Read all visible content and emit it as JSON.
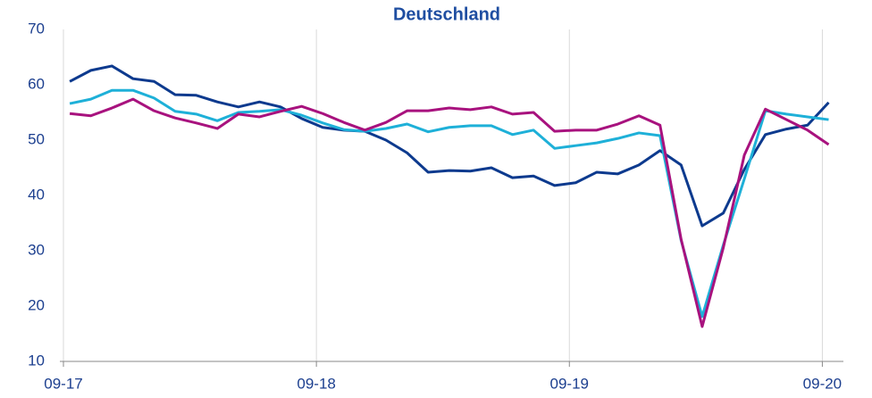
{
  "chart_data": {
    "type": "line",
    "title": "Deutschland",
    "x": [
      0.3,
      1.3,
      2.3,
      3.3,
      4.3,
      5.3,
      6.3,
      7.3,
      8.3,
      9.3,
      10.3,
      11.3,
      12.3,
      13.3,
      14.3,
      15.3,
      16.3,
      17.3,
      18.3,
      19.3,
      20.3,
      21.3,
      22.3,
      23.3,
      24.3,
      25.3,
      26.3,
      27.3,
      28.3,
      29.3,
      30.3,
      31.3,
      32.3,
      33.3,
      34.3,
      35.3,
      36.3
    ],
    "series": [
      {
        "color": "#0d3a8e",
        "values": [
          60.6,
          62.6,
          63.4,
          61.1,
          60.6,
          58.2,
          58.1,
          56.9,
          56.0,
          56.9,
          56.0,
          53.9,
          52.3,
          51.8,
          51.6,
          50.0,
          47.7,
          44.2,
          44.5,
          44.4,
          45.0,
          43.2,
          43.5,
          41.8,
          42.3,
          44.2,
          43.9,
          45.5,
          48.1,
          45.5,
          34.5,
          36.8,
          44.7,
          51.0,
          52.0,
          52.7,
          56.8
        ]
      },
      {
        "color": "#1eb0d8",
        "values": [
          56.6,
          57.4,
          59.0,
          59.0,
          57.6,
          55.2,
          54.7,
          53.5,
          55.0,
          55.2,
          55.5,
          54.5,
          53.1,
          51.9,
          51.6,
          52.1,
          52.9,
          51.5,
          52.3,
          52.6,
          52.6,
          51.0,
          51.8,
          48.5,
          49.0,
          49.5,
          50.3,
          51.3,
          50.8,
          31.9,
          18.1,
          31.0,
          43.0,
          55.3,
          54.7,
          54.2,
          53.7
        ]
      },
      {
        "color": "#a8127e",
        "values": [
          54.8,
          54.4,
          55.8,
          57.4,
          55.3,
          54.0,
          53.1,
          52.1,
          54.7,
          54.2,
          55.2,
          56.1,
          54.8,
          53.2,
          51.8,
          53.2,
          55.3,
          55.3,
          55.8,
          55.5,
          56.0,
          54.7,
          55.0,
          51.6,
          51.8,
          51.8,
          52.9,
          54.4,
          52.7,
          32.1,
          16.3,
          30.5,
          47.3,
          55.6,
          53.7,
          51.8,
          49.2
        ]
      }
    ],
    "xlim": [
      0,
      37
    ],
    "xticks": [
      {
        "value": 0,
        "label": "09-17"
      },
      {
        "value": 12,
        "label": "09-18"
      },
      {
        "value": 24,
        "label": "09-19"
      },
      {
        "value": 36,
        "label": "09-20"
      }
    ],
    "ylim": [
      10,
      70
    ],
    "yticks": [
      10,
      20,
      30,
      40,
      50,
      60,
      70
    ],
    "grid": "x"
  }
}
